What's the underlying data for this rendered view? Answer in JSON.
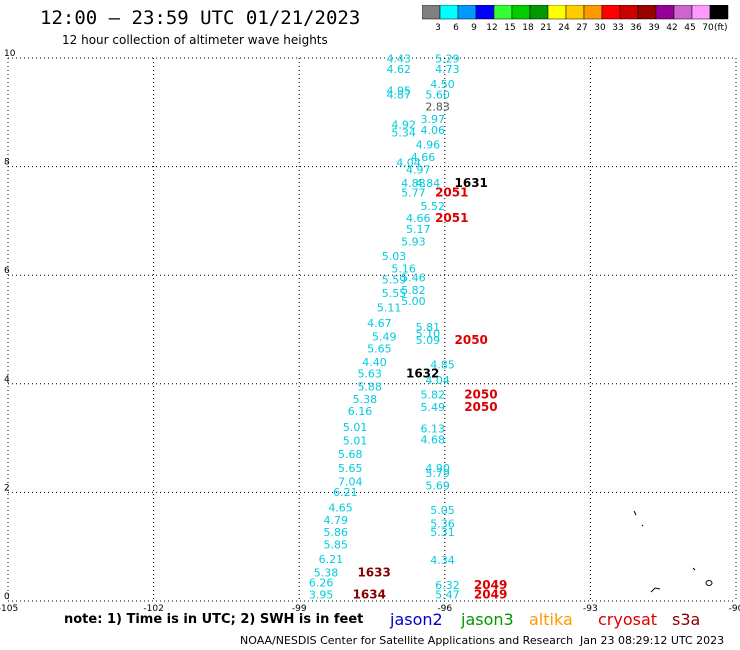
{
  "header": {
    "title": "12:00 – 23:59 UTC 01/21/2023",
    "subtitle": "12 hour collection of altimeter wave heights"
  },
  "legend": {
    "unit": "(ft)",
    "bins": [
      {
        "label": "3",
        "color": "#808080"
      },
      {
        "label": "6",
        "color": "#00ffff"
      },
      {
        "label": "9",
        "color": "#0099ff"
      },
      {
        "label": "12",
        "color": "#0000ff"
      },
      {
        "label": "15",
        "color": "#33ff33"
      },
      {
        "label": "18",
        "color": "#00cc00"
      },
      {
        "label": "21",
        "color": "#009900"
      },
      {
        "label": "24",
        "color": "#ffff00"
      },
      {
        "label": "27",
        "color": "#ffcc00"
      },
      {
        "label": "30",
        "color": "#ff9900"
      },
      {
        "label": "33",
        "color": "#ff0000"
      },
      {
        "label": "36",
        "color": "#cc0000"
      },
      {
        "label": "39",
        "color": "#990000"
      },
      {
        "label": "42",
        "color": "#990099"
      },
      {
        "label": "45",
        "color": "#cc66cc"
      },
      {
        "label": "70",
        "color": "#ff99ff"
      },
      {
        "label": "",
        "color": "#000000"
      }
    ]
  },
  "axes": {
    "x_ticks": [
      {
        "label": "-105",
        "lon": -105
      },
      {
        "label": "-102",
        "lon": -102
      },
      {
        "label": "-99",
        "lon": -99
      },
      {
        "label": "-96",
        "lon": -96
      },
      {
        "label": "-93",
        "lon": -93
      },
      {
        "label": "-90",
        "lon": -90
      }
    ],
    "y_ticks": [
      {
        "label": "0",
        "lat": 0
      },
      {
        "label": "2",
        "lat": 2
      },
      {
        "label": "4",
        "lat": 4
      },
      {
        "label": "6",
        "lat": 6
      },
      {
        "label": "8",
        "lat": 8
      },
      {
        "label": "10",
        "lat": 10
      }
    ],
    "lon_range": [
      -105,
      -90
    ],
    "lat_range": [
      0,
      10
    ]
  },
  "colors": {
    "swh": "#00ccdd",
    "swh_grey": "#555555",
    "time_dark": "#000000",
    "time_red": "#dd0000",
    "time_maroon": "#880000"
  },
  "observations": [
    {
      "text": "4.43",
      "lon": -97.2,
      "lat": 9.92,
      "c": "swh"
    },
    {
      "text": "5.29",
      "lon": -96.2,
      "lat": 9.92,
      "c": "swh"
    },
    {
      "text": "4.62",
      "lon": -97.2,
      "lat": 9.72,
      "c": "swh"
    },
    {
      "text": "4.73",
      "lon": -96.2,
      "lat": 9.72,
      "c": "swh"
    },
    {
      "text": "4.50",
      "lon": -96.3,
      "lat": 9.45,
      "c": "swh"
    },
    {
      "text": "4.95",
      "lon": -97.2,
      "lat": 9.33,
      "c": "swh"
    },
    {
      "text": "4.87",
      "lon": -97.2,
      "lat": 9.25,
      "c": "swh"
    },
    {
      "text": "5.60",
      "lon": -96.4,
      "lat": 9.25,
      "c": "swh"
    },
    {
      "text": "2.83",
      "lon": -96.4,
      "lat": 9.03,
      "c": "swh_grey"
    },
    {
      "text": "3.97",
      "lon": -96.5,
      "lat": 8.8,
      "c": "swh"
    },
    {
      "text": "4.92",
      "lon": -97.1,
      "lat": 8.7,
      "c": "swh"
    },
    {
      "text": "4.06",
      "lon": -96.5,
      "lat": 8.6,
      "c": "swh"
    },
    {
      "text": "5.34",
      "lon": -97.1,
      "lat": 8.55,
      "c": "swh"
    },
    {
      "text": "4.96",
      "lon": -96.6,
      "lat": 8.33,
      "c": "swh"
    },
    {
      "text": "4.66",
      "lon": -96.7,
      "lat": 8.1,
      "c": "swh"
    },
    {
      "text": "4.04",
      "lon": -97.0,
      "lat": 8.0,
      "c": "swh"
    },
    {
      "text": "4.97",
      "lon": -96.8,
      "lat": 7.87,
      "c": "swh"
    },
    {
      "text": "4.88",
      "lon": -96.9,
      "lat": 7.62,
      "c": "swh"
    },
    {
      "text": "4.84",
      "lon": -96.6,
      "lat": 7.62,
      "c": "swh"
    },
    {
      "text": "1631",
      "lon": -95.8,
      "lat": 7.62,
      "c": "time_dark"
    },
    {
      "text": "5.77",
      "lon": -96.9,
      "lat": 7.45,
      "c": "swh"
    },
    {
      "text": "2051",
      "lon": -96.2,
      "lat": 7.45,
      "c": "time_red"
    },
    {
      "text": "5.52",
      "lon": -96.5,
      "lat": 7.2,
      "c": "swh"
    },
    {
      "text": "4.66",
      "lon": -96.8,
      "lat": 6.98,
      "c": "swh"
    },
    {
      "text": "2051",
      "lon": -96.2,
      "lat": 6.98,
      "c": "time_red"
    },
    {
      "text": "5.17",
      "lon": -96.8,
      "lat": 6.78,
      "c": "swh"
    },
    {
      "text": "5.93",
      "lon": -96.9,
      "lat": 6.55,
      "c": "swh"
    },
    {
      "text": "5.03",
      "lon": -97.3,
      "lat": 6.28,
      "c": "swh"
    },
    {
      "text": "5.16",
      "lon": -97.1,
      "lat": 6.05,
      "c": "swh"
    },
    {
      "text": "5.46",
      "lon": -96.9,
      "lat": 5.88,
      "c": "swh"
    },
    {
      "text": "5.59",
      "lon": -97.3,
      "lat": 5.85,
      "c": "swh"
    },
    {
      "text": "5.82",
      "lon": -96.9,
      "lat": 5.65,
      "c": "swh"
    },
    {
      "text": "5.55",
      "lon": -97.3,
      "lat": 5.6,
      "c": "swh"
    },
    {
      "text": "5.00",
      "lon": -96.9,
      "lat": 5.45,
      "c": "swh"
    },
    {
      "text": "5.11",
      "lon": -97.4,
      "lat": 5.33,
      "c": "swh"
    },
    {
      "text": "4.67",
      "lon": -97.6,
      "lat": 5.05,
      "c": "swh"
    },
    {
      "text": "5.81",
      "lon": -96.6,
      "lat": 4.97,
      "c": "swh"
    },
    {
      "text": "5.49",
      "lon": -97.5,
      "lat": 4.8,
      "c": "swh"
    },
    {
      "text": "5.10",
      "lon": -96.6,
      "lat": 4.85,
      "c": "swh"
    },
    {
      "text": "5.09",
      "lon": -96.6,
      "lat": 4.73,
      "c": "swh"
    },
    {
      "text": "2050",
      "lon": -95.8,
      "lat": 4.73,
      "c": "time_red"
    },
    {
      "text": "5.65",
      "lon": -97.6,
      "lat": 4.58,
      "c": "swh"
    },
    {
      "text": "4.40",
      "lon": -97.7,
      "lat": 4.33,
      "c": "swh"
    },
    {
      "text": "4.85",
      "lon": -96.3,
      "lat": 4.28,
      "c": "swh"
    },
    {
      "text": "5.63",
      "lon": -97.8,
      "lat": 4.12,
      "c": "swh"
    },
    {
      "text": "1632",
      "lon": -96.8,
      "lat": 4.12,
      "c": "time_dark"
    },
    {
      "text": "4.04",
      "lon": -96.4,
      "lat": 4.0,
      "c": "swh"
    },
    {
      "text": "5.88",
      "lon": -97.8,
      "lat": 3.88,
      "c": "swh"
    },
    {
      "text": "5.82",
      "lon": -96.5,
      "lat": 3.73,
      "c": "swh"
    },
    {
      "text": "2050",
      "lon": -95.6,
      "lat": 3.73,
      "c": "time_red"
    },
    {
      "text": "5.38",
      "lon": -97.9,
      "lat": 3.65,
      "c": "swh"
    },
    {
      "text": "5.49",
      "lon": -96.5,
      "lat": 3.5,
      "c": "swh"
    },
    {
      "text": "2050",
      "lon": -95.6,
      "lat": 3.5,
      "c": "time_red"
    },
    {
      "text": "6.16",
      "lon": -98.0,
      "lat": 3.43,
      "c": "swh"
    },
    {
      "text": "5.01",
      "lon": -98.1,
      "lat": 3.13,
      "c": "swh"
    },
    {
      "text": "6.13",
      "lon": -96.5,
      "lat": 3.1,
      "c": "swh"
    },
    {
      "text": "4.68",
      "lon": -96.5,
      "lat": 2.9,
      "c": "swh"
    },
    {
      "text": "5.01",
      "lon": -98.1,
      "lat": 2.88,
      "c": "swh"
    },
    {
      "text": "5.68",
      "lon": -98.2,
      "lat": 2.63,
      "c": "swh"
    },
    {
      "text": "5.65",
      "lon": -98.2,
      "lat": 2.38,
      "c": "swh"
    },
    {
      "text": "4.90",
      "lon": -96.4,
      "lat": 2.38,
      "c": "swh"
    },
    {
      "text": "5.79",
      "lon": -96.4,
      "lat": 2.28,
      "c": "swh"
    },
    {
      "text": "7.04",
      "lon": -98.2,
      "lat": 2.13,
      "c": "swh"
    },
    {
      "text": "5.69",
      "lon": -96.4,
      "lat": 2.05,
      "c": "swh"
    },
    {
      "text": "6.21",
      "lon": -98.3,
      "lat": 1.93,
      "c": "swh"
    },
    {
      "text": "4.65",
      "lon": -98.4,
      "lat": 1.65,
      "c": "swh"
    },
    {
      "text": "5.05",
      "lon": -96.3,
      "lat": 1.6,
      "c": "swh"
    },
    {
      "text": "4.79",
      "lon": -98.5,
      "lat": 1.42,
      "c": "swh"
    },
    {
      "text": "5.36",
      "lon": -96.3,
      "lat": 1.35,
      "c": "swh"
    },
    {
      "text": "5.86",
      "lon": -98.5,
      "lat": 1.2,
      "c": "swh"
    },
    {
      "text": "5.31",
      "lon": -96.3,
      "lat": 1.2,
      "c": "swh"
    },
    {
      "text": "5.85",
      "lon": -98.5,
      "lat": 0.97,
      "c": "swh"
    },
    {
      "text": "6.21",
      "lon": -98.6,
      "lat": 0.7,
      "c": "swh"
    },
    {
      "text": "4.34",
      "lon": -96.3,
      "lat": 0.68,
      "c": "swh"
    },
    {
      "text": "5.38",
      "lon": -98.7,
      "lat": 0.45,
      "c": "swh"
    },
    {
      "text": "1633",
      "lon": -97.8,
      "lat": 0.45,
      "c": "time_maroon"
    },
    {
      "text": "6.26",
      "lon": -98.8,
      "lat": 0.27,
      "c": "swh"
    },
    {
      "text": "6.32",
      "lon": -96.2,
      "lat": 0.22,
      "c": "swh"
    },
    {
      "text": "2049",
      "lon": -95.4,
      "lat": 0.22,
      "c": "time_red"
    },
    {
      "text": "3.95",
      "lon": -98.8,
      "lat": 0.05,
      "c": "swh"
    },
    {
      "text": "1634",
      "lon": -97.9,
      "lat": 0.05,
      "c": "time_maroon"
    },
    {
      "text": "5.47",
      "lon": -96.2,
      "lat": 0.05,
      "c": "swh"
    },
    {
      "text": "2049",
      "lon": -95.4,
      "lat": 0.05,
      "c": "time_red"
    }
  ],
  "footer": {
    "note": "note:  1) Time is in UTC; 2) SWH is in feet",
    "satellites": [
      {
        "name": "jason2",
        "color": "#0000cc"
      },
      {
        "name": "jason3",
        "color": "#009900"
      },
      {
        "name": "altika",
        "color": "#ff9900"
      },
      {
        "name": "cryosat",
        "color": "#dd0000"
      },
      {
        "name": "s3a",
        "color": "#880000"
      }
    ],
    "credit": "NOAA/NESDIS Center for Satellite Applications and Research",
    "timestamp": "Jan 23 08:29:12 UTC 2023"
  }
}
